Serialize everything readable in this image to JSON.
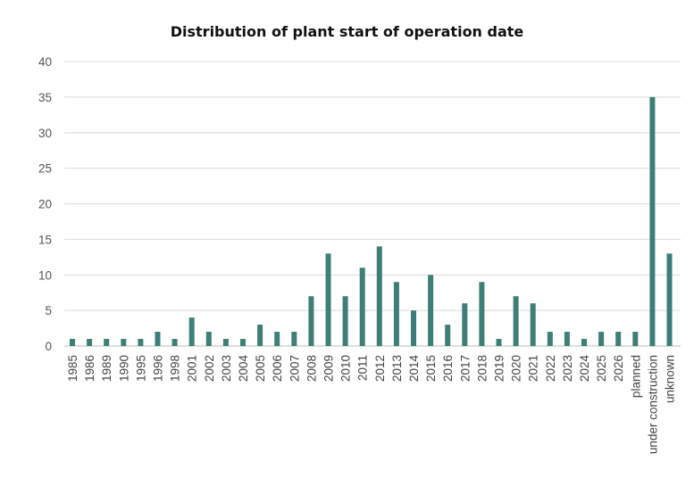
{
  "chart_data": {
    "type": "bar",
    "title": "Distribution of plant start of operation date",
    "xlabel": "",
    "ylabel": "",
    "ylim": [
      0,
      40
    ],
    "yticks": [
      0,
      5,
      10,
      15,
      20,
      25,
      30,
      35,
      40
    ],
    "grid": true,
    "legend": "none",
    "bar_color": "#3d7f77",
    "categories": [
      "1985",
      "1986",
      "1989",
      "1990",
      "1995",
      "1996",
      "1998",
      "2001",
      "2002",
      "2003",
      "2004",
      "2005",
      "2006",
      "2007",
      "2008",
      "2009",
      "2010",
      "2011",
      "2012",
      "2013",
      "2014",
      "2015",
      "2016",
      "2017",
      "2018",
      "2019",
      "2020",
      "2021",
      "2022",
      "2023",
      "2024",
      "2025",
      "2026",
      "planned",
      "under construction",
      "unknown"
    ],
    "values": [
      1,
      1,
      1,
      1,
      1,
      2,
      1,
      4,
      2,
      1,
      1,
      3,
      2,
      2,
      7,
      13,
      7,
      11,
      14,
      9,
      5,
      10,
      3,
      6,
      9,
      1,
      7,
      6,
      2,
      2,
      1,
      2,
      2,
      2,
      35,
      13
    ]
  }
}
